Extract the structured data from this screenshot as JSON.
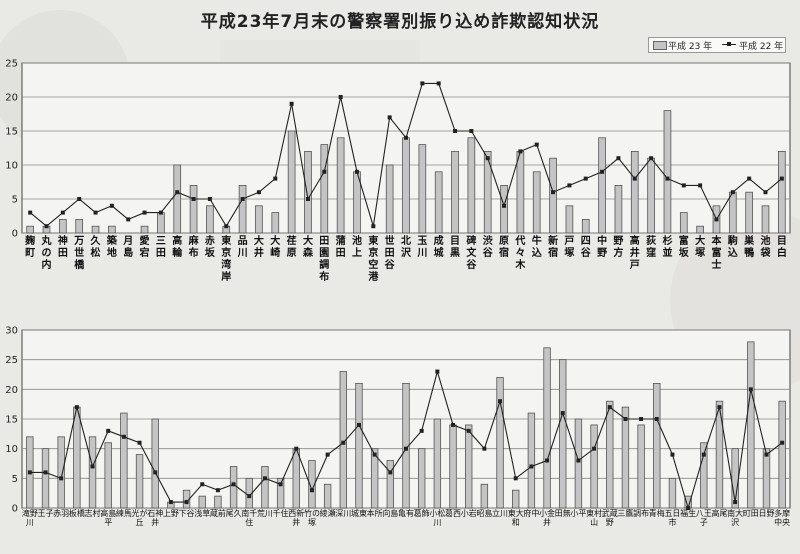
{
  "title": "平成23年7月末の警察署別振り込め詐欺認知状況",
  "legend": {
    "series_a": "平成 23 年",
    "series_b": "平成 22 年"
  },
  "colors": {
    "bar": "#c4c4c4",
    "bar_stroke": "#555555",
    "line": "#222222",
    "grid": "#888888",
    "background": "#e9e9e6"
  },
  "chart_data": [
    {
      "type": "bar",
      "ylim": [
        0,
        25
      ],
      "yticks": [
        0,
        5,
        10,
        15,
        20,
        25
      ],
      "grid": true,
      "legend_position": "top-right",
      "categories": [
        "麹町",
        "丸の内",
        "神田",
        "万世橋",
        "久松",
        "築地",
        "月島",
        "愛宕",
        "三田",
        "高輪",
        "麻布",
        "赤坂",
        "東京湾岸",
        "品川",
        "大井",
        "大崎",
        "荏原",
        "大森",
        "田園調布",
        "蒲田",
        "池上",
        "東京空港",
        "世田谷",
        "北沢",
        "玉川",
        "成城",
        "目黒",
        "碑文谷",
        "渋谷",
        "原宿",
        "代々木",
        "牛込",
        "新宿",
        "戸塚",
        "四谷",
        "中野",
        "野方",
        "高井戸",
        "荻窪",
        "杉並",
        "富坂",
        "大塚",
        "本富士",
        "駒込",
        "巣鴨",
        "池袋",
        "目白"
      ],
      "series": [
        {
          "name": "平成 23 年",
          "values": [
            1,
            1,
            2,
            2,
            1,
            1,
            0,
            1,
            3,
            10,
            7,
            4,
            1,
            7,
            4,
            3,
            15,
            12,
            13,
            14,
            9,
            0,
            10,
            14,
            13,
            9,
            12,
            14,
            12,
            7,
            12,
            9,
            11,
            4,
            2,
            14,
            7,
            12,
            11,
            18,
            3,
            1,
            4,
            6,
            6,
            4,
            12
          ]
        },
        {
          "name": "平成 22 年",
          "values": [
            3,
            1,
            3,
            5,
            3,
            4,
            2,
            3,
            3,
            6,
            5,
            5,
            1,
            5,
            6,
            8,
            19,
            5,
            9,
            20,
            9,
            1,
            17,
            14,
            22,
            22,
            15,
            15,
            11,
            4,
            12,
            13,
            6,
            7,
            8,
            9,
            11,
            8,
            11,
            8,
            7,
            7,
            2,
            6,
            8,
            6,
            8
          ]
        }
      ]
    },
    {
      "type": "bar",
      "ylim": [
        0,
        30
      ],
      "yticks": [
        0,
        5,
        10,
        15,
        20,
        25,
        30
      ],
      "grid": true,
      "categories": [
        "滝野川",
        "王子",
        "赤羽",
        "板橋",
        "志村",
        "高島平",
        "練馬",
        "光が丘",
        "石神井",
        "上野",
        "下谷",
        "浅草",
        "蔵前",
        "尾久",
        "南千住",
        "荒川",
        "千住",
        "西新井",
        "竹の塚",
        "綾瀬",
        "深川",
        "城東",
        "本所",
        "向島",
        "亀有",
        "葛飾",
        "小松川",
        "葛西",
        "小岩",
        "昭島",
        "立川",
        "東大和",
        "府中",
        "小金井",
        "田無",
        "小平",
        "東村山",
        "武蔵野",
        "三鷹",
        "調布",
        "青梅",
        "五日市",
        "福生",
        "八王子",
        "高尾",
        "南大沢",
        "町田",
        "日野",
        "多摩中央"
      ],
      "series": [
        {
          "name": "平成 23 年",
          "values": [
            12,
            10,
            12,
            17,
            12,
            11,
            16,
            9,
            15,
            1,
            3,
            2,
            2,
            7,
            5,
            7,
            5,
            10,
            8,
            4,
            23,
            21,
            10,
            8,
            21,
            10,
            15,
            14,
            14,
            4,
            22,
            3,
            16,
            27,
            25,
            15,
            14,
            18,
            17,
            14,
            21,
            5,
            2,
            11,
            18,
            10,
            28,
            10,
            18
          ]
        },
        {
          "name": "平成 22 年",
          "values": [
            6,
            6,
            5,
            17,
            7,
            13,
            12,
            11,
            6,
            1,
            1,
            4,
            3,
            4,
            2,
            5,
            4,
            10,
            3,
            9,
            11,
            14,
            9,
            6,
            10,
            13,
            23,
            14,
            13,
            10,
            18,
            5,
            7,
            8,
            16,
            8,
            10,
            17,
            15,
            15,
            15,
            9,
            0,
            9,
            17,
            1,
            20,
            9,
            11
          ]
        }
      ]
    }
  ]
}
